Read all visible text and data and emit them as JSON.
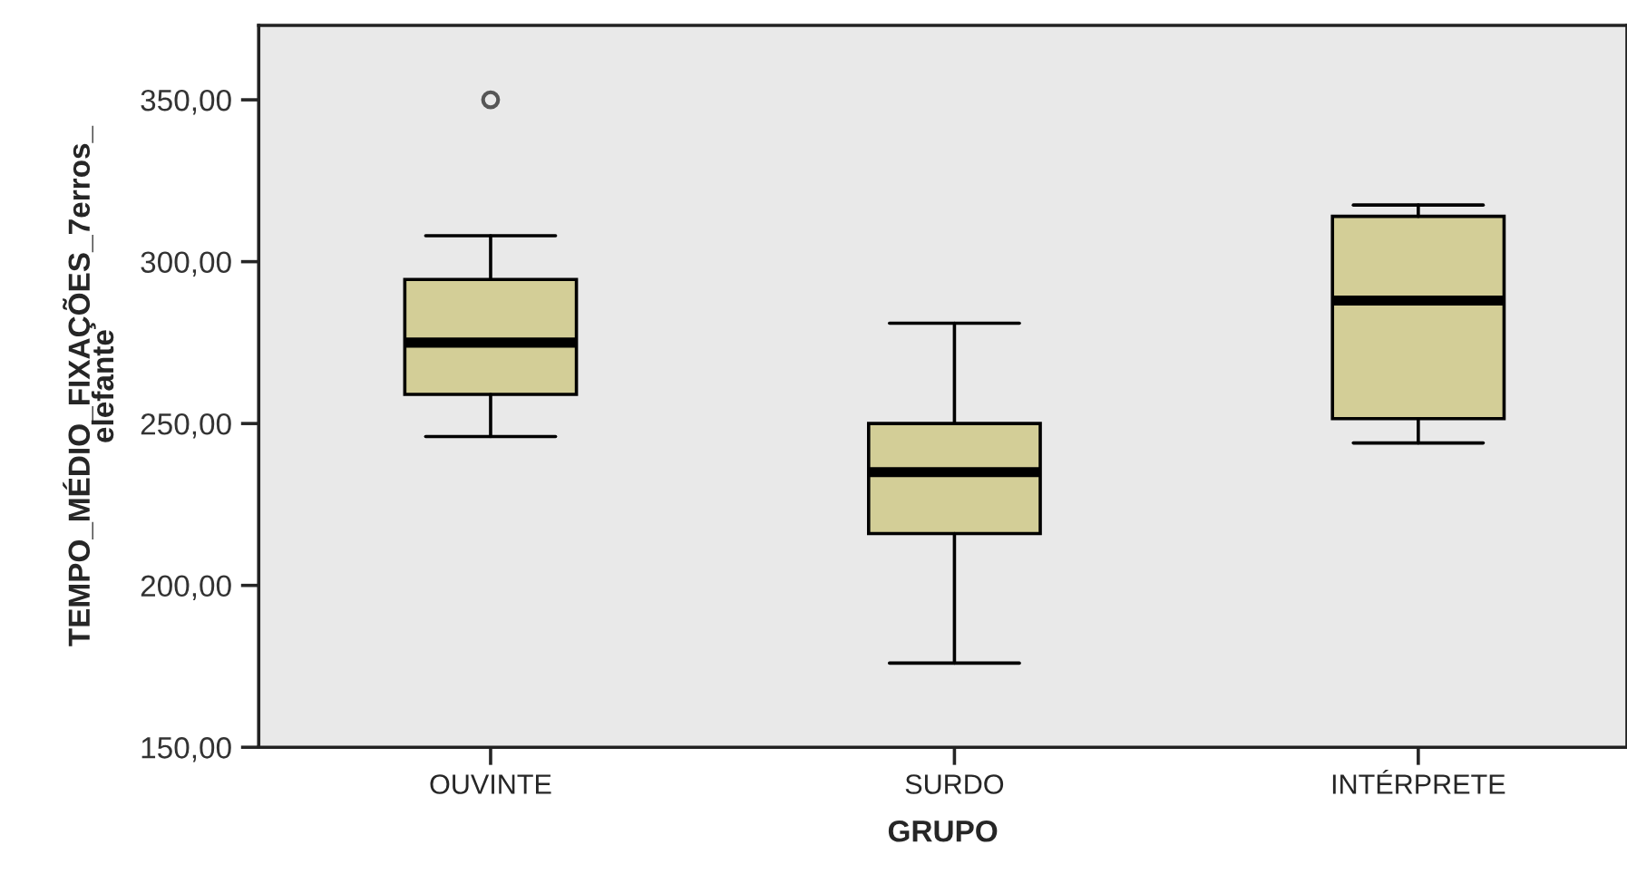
{
  "chart_data": {
    "type": "box",
    "xlabel": "GRUPO",
    "ylabel": "TEMPO_MÉDIO_FIXAÇÕES_7erros_\nelefante",
    "categories": [
      "OUVINTE",
      "SURDO",
      "INTÉRPRETE"
    ],
    "series": [
      {
        "color": "#d3ce97",
        "boxes": [
          {
            "low": 246,
            "q1": 259,
            "median": 275,
            "q3": 294.5,
            "high": 308,
            "outliers": [
              350
            ]
          },
          {
            "low": 176,
            "q1": 216,
            "median": 235,
            "q3": 250,
            "high": 281
          },
          {
            "low": 244,
            "q1": 251.5,
            "median": 288,
            "q3": 314,
            "high": 317.5
          }
        ]
      }
    ],
    "ylim": [
      150,
      373
    ],
    "yticks": [
      {
        "value": 150,
        "label": "150,00"
      },
      {
        "value": 200,
        "label": "200,00"
      },
      {
        "value": 250,
        "label": "250,00"
      },
      {
        "value": 300,
        "label": "300,00"
      },
      {
        "value": 350,
        "label": "350,00"
      }
    ],
    "grid": false,
    "legend": false
  }
}
